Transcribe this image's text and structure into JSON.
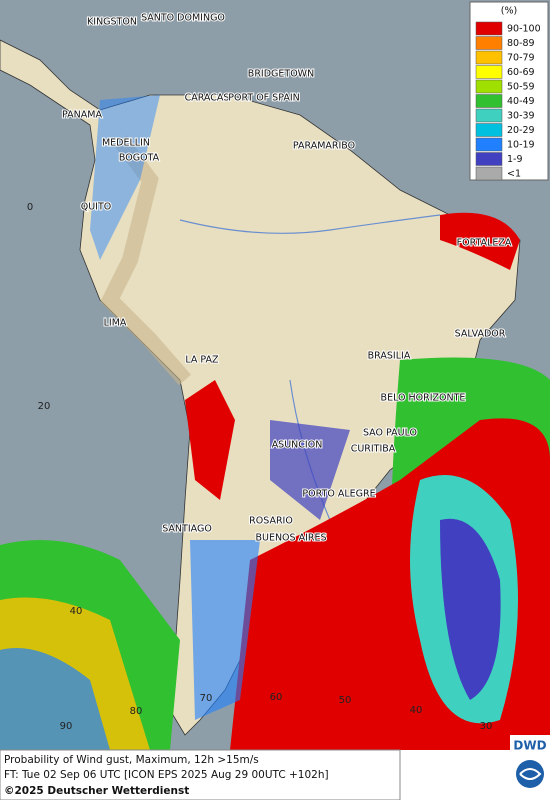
{
  "legend": {
    "title": "(%)",
    "items": [
      {
        "label": "90-100",
        "color": "#e00000"
      },
      {
        "label": "80-89",
        "color": "#ff8000"
      },
      {
        "label": "70-79",
        "color": "#ffc000"
      },
      {
        "label": "60-69",
        "color": "#ffff00"
      },
      {
        "label": "50-59",
        "color": "#a0e000"
      },
      {
        "label": "40-49",
        "color": "#30c030"
      },
      {
        "label": "30-39",
        "color": "#40d0c0"
      },
      {
        "label": "20-29",
        "color": "#00c0e0"
      },
      {
        "label": "10-19",
        "color": "#2080ff"
      },
      {
        "label": "1-9",
        "color": "#4040c0"
      },
      {
        "label": "<1",
        "color": "#aaaaaa"
      }
    ]
  },
  "cities": [
    "KINGSTON",
    "SANTO DOMINGO",
    "BRIDGETOWN",
    "CARACAS",
    "PORT OF SPAIN",
    "PANAMA",
    "MEDELLIN",
    "BOGOTA",
    "PARAMARIBO",
    "QUITO",
    "FORTALEZA",
    "LIMA",
    "SALVADOR",
    "BRASILIA",
    "LA PAZ",
    "BELO HORIZONTE",
    "SAO PAULO",
    "ASUNCION",
    "CURITIBA",
    "PORTO ALEGRE",
    "ROSARIO",
    "BUENOS AIRES",
    "SANTIAGO"
  ],
  "grid_labels": [
    "0",
    "20",
    "40",
    "90",
    "80",
    "70",
    "60",
    "50",
    "40",
    "30"
  ],
  "footer": {
    "line1": "Probability of Wind gust, Maximum, 12h >15m/s",
    "line2": "FT: Tue 02 Sep 06 UTC [ICON EPS 2025 Aug 29 00UTC +102h]",
    "line3": "©2025 Deutscher Wetterdienst",
    "logo": "DWD"
  }
}
